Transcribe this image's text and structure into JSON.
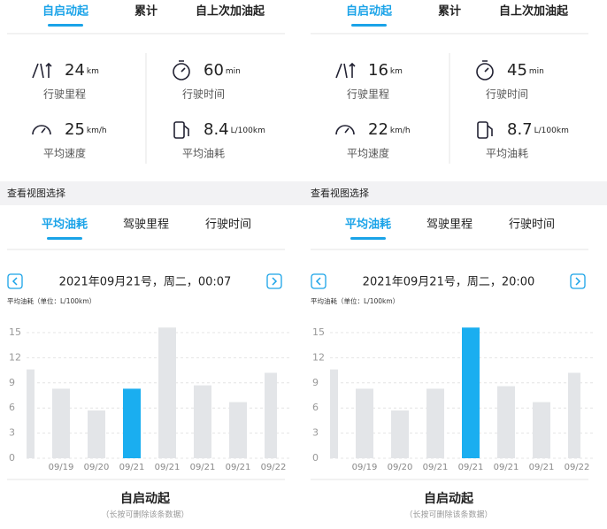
{
  "panels": [
    {
      "tabs": [
        "自启动起",
        "累计",
        "自上次加油起"
      ],
      "active_tab": 0,
      "stats": [
        {
          "value": 24,
          "unit": "km",
          "label": "行驶里程"
        },
        {
          "value": 60,
          "unit": "min",
          "label": "行驶时间"
        },
        {
          "value": 25,
          "unit": "km/h",
          "label": "平均速度"
        },
        {
          "value": 8.4,
          "unit": "L/100km",
          "label": "平均油耗"
        }
      ],
      "section_title": "查看视图选择",
      "view_tabs": [
        "平均油耗",
        "驾驶里程",
        "行驶时间"
      ],
      "active_view": 0,
      "date": "2021年09月21号，周二，00:07",
      "chart_data": {
        "type": "bar",
        "subtitle": "平均油耗（单位：L/100km）",
        "categories": [
          null,
          "09/19",
          "09/20",
          "09/21",
          "09/21",
          "09/21",
          "09/21",
          "09/22"
        ],
        "values": [
          10.6,
          8.3,
          5.7,
          8.3,
          15.6,
          8.7,
          6.7,
          10.2
        ],
        "color": "#e3e5e8",
        "highlight": 3,
        "highlight_color": "#1aaef0",
        "ylim": [
          0,
          16
        ],
        "yticks": [
          0,
          3,
          6,
          9,
          12,
          15
        ],
        "grid": true
      },
      "record_title": "自启动起",
      "record_hint": "（长按可删除该条数据）"
    },
    {
      "tabs": [
        "自启动起",
        "累计",
        "自上次加油起"
      ],
      "active_tab": 0,
      "stats": [
        {
          "value": 16,
          "unit": "km",
          "label": "行驶里程"
        },
        {
          "value": 45,
          "unit": "min",
          "label": "行驶时间"
        },
        {
          "value": 22,
          "unit": "km/h",
          "label": "平均速度"
        },
        {
          "value": 8.7,
          "unit": "L/100km",
          "label": "平均油耗"
        }
      ],
      "section_title": "查看视图选择",
      "view_tabs": [
        "平均油耗",
        "驾驶里程",
        "行驶时间"
      ],
      "active_view": 0,
      "date": "2021年09月21号，周二，20:00",
      "chart_data": {
        "type": "bar",
        "subtitle": "平均油耗（单位：L/100km）",
        "categories": [
          null,
          "09/19",
          "09/20",
          "09/21",
          "09/21",
          "09/21",
          "09/21",
          "09/22"
        ],
        "values": [
          10.6,
          8.3,
          5.7,
          8.3,
          15.6,
          8.6,
          6.7,
          10.2
        ],
        "color": "#e3e5e8",
        "highlight": 4,
        "highlight_color": "#1aaef0",
        "ylim": [
          0,
          16
        ],
        "yticks": [
          0,
          3,
          6,
          9,
          12,
          15
        ],
        "grid": true
      },
      "record_title": "自启动起",
      "record_hint": "（长按可删除该条数据）"
    }
  ]
}
